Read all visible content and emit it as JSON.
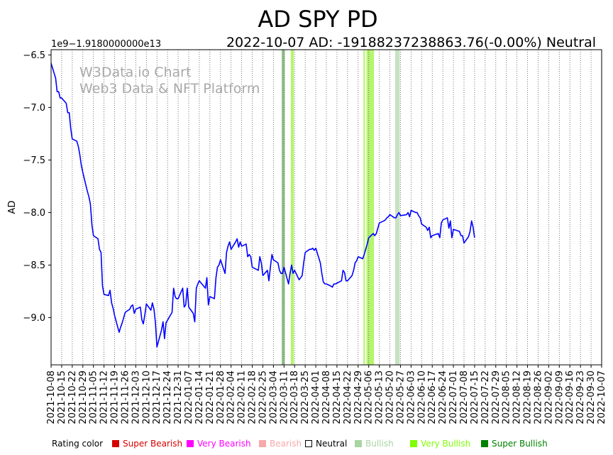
{
  "chart_data": {
    "type": "line",
    "title": "AD SPY PD",
    "subtitle": "2022-10-07 AD: -19188237238863.76(-0.00%) Neutral",
    "ylabel": "AD",
    "xlabel": "",
    "offset_label": "1e9−1.9180000000e13",
    "ylim": [
      -9.45,
      -6.45
    ],
    "yticks": [
      -6.5,
      -7.0,
      -7.5,
      -8.0,
      -8.5,
      -9.0
    ],
    "ytick_labels": [
      "−6.5",
      "−7.0",
      "−7.5",
      "−8.0",
      "−8.5",
      "−9.0"
    ],
    "x_start": "2021-10-08",
    "x_end": "2022-10-07",
    "x_tick_labels": [
      "2021-10-08",
      "2021-10-15",
      "2021-10-22",
      "2021-10-29",
      "2021-11-05",
      "2021-11-12",
      "2021-11-19",
      "2021-11-26",
      "2021-12-03",
      "2021-12-10",
      "2021-12-17",
      "2021-12-24",
      "2021-12-31",
      "2022-01-07",
      "2022-01-14",
      "2022-01-21",
      "2022-01-28",
      "2022-02-04",
      "2022-02-11",
      "2022-02-18",
      "2022-02-25",
      "2022-03-04",
      "2022-03-11",
      "2022-03-18",
      "2022-03-25",
      "2022-04-01",
      "2022-04-08",
      "2022-04-15",
      "2022-04-22",
      "2022-04-29",
      "2022-05-06",
      "2022-05-13",
      "2022-05-20",
      "2022-05-27",
      "2022-06-03",
      "2022-06-10",
      "2022-06-17",
      "2022-06-24",
      "2022-07-01",
      "2022-07-08",
      "2022-07-15",
      "2022-07-22",
      "2022-07-29",
      "2022-08-05",
      "2022-08-12",
      "2022-08-19",
      "2022-08-26",
      "2022-09-02",
      "2022-09-09",
      "2022-09-16",
      "2022-09-23",
      "2022-09-30",
      "2022-10-07"
    ],
    "series": [
      {
        "name": "AD",
        "color": "#0000ff",
        "points": [
          [
            "2021-10-08",
            -6.58
          ],
          [
            "2021-10-11",
            -6.72
          ],
          [
            "2021-10-12",
            -6.85
          ],
          [
            "2021-10-13",
            -6.85
          ],
          [
            "2021-10-14",
            -6.91
          ],
          [
            "2021-10-15",
            -6.91
          ],
          [
            "2021-10-18",
            -6.96
          ],
          [
            "2021-10-19",
            -7.05
          ],
          [
            "2021-10-20",
            -7.05
          ],
          [
            "2021-10-21",
            -7.2
          ],
          [
            "2021-10-22",
            -7.3
          ],
          [
            "2021-10-25",
            -7.32
          ],
          [
            "2021-10-26",
            -7.37
          ],
          [
            "2021-10-27",
            -7.45
          ],
          [
            "2021-10-28",
            -7.55
          ],
          [
            "2021-10-29",
            -7.62
          ],
          [
            "2021-11-01",
            -7.8
          ],
          [
            "2021-11-02",
            -7.85
          ],
          [
            "2021-11-03",
            -7.92
          ],
          [
            "2021-11-04",
            -8.12
          ],
          [
            "2021-11-05",
            -8.22
          ],
          [
            "2021-11-08",
            -8.25
          ],
          [
            "2021-11-09",
            -8.35
          ],
          [
            "2021-11-10",
            -8.38
          ],
          [
            "2021-11-11",
            -8.7
          ],
          [
            "2021-11-12",
            -8.78
          ],
          [
            "2021-11-15",
            -8.79
          ],
          [
            "2021-11-16",
            -8.74
          ],
          [
            "2021-11-17",
            -8.86
          ],
          [
            "2021-11-18",
            -8.91
          ],
          [
            "2021-11-19",
            -8.98
          ],
          [
            "2021-11-22",
            -9.14
          ],
          [
            "2021-11-23",
            -9.09
          ],
          [
            "2021-11-24",
            -9.05
          ],
          [
            "2021-11-26",
            -8.95
          ],
          [
            "2021-11-29",
            -8.92
          ],
          [
            "2021-11-30",
            -8.89
          ],
          [
            "2021-12-01",
            -8.88
          ],
          [
            "2021-12-02",
            -8.96
          ],
          [
            "2021-12-03",
            -8.92
          ],
          [
            "2021-12-06",
            -8.9
          ],
          [
            "2021-12-07",
            -9.02
          ],
          [
            "2021-12-08",
            -9.06
          ],
          [
            "2021-12-09",
            -8.97
          ],
          [
            "2021-12-10",
            -8.87
          ],
          [
            "2021-12-13",
            -8.93
          ],
          [
            "2021-12-14",
            -8.86
          ],
          [
            "2021-12-15",
            -8.92
          ],
          [
            "2021-12-16",
            -9.05
          ],
          [
            "2021-12-17",
            -9.28
          ],
          [
            "2021-12-20",
            -9.12
          ],
          [
            "2021-12-21",
            -9.04
          ],
          [
            "2021-12-22",
            -9.2
          ],
          [
            "2021-12-23",
            -9.05
          ],
          [
            "2021-12-27",
            -8.95
          ],
          [
            "2021-12-28",
            -8.72
          ],
          [
            "2021-12-29",
            -8.8
          ],
          [
            "2021-12-30",
            -8.82
          ],
          [
            "2021-12-31",
            -8.82
          ],
          [
            "2022-01-03",
            -8.72
          ],
          [
            "2022-01-04",
            -8.9
          ],
          [
            "2022-01-05",
            -8.88
          ],
          [
            "2022-01-06",
            -8.72
          ],
          [
            "2022-01-07",
            -8.9
          ],
          [
            "2022-01-10",
            -8.96
          ],
          [
            "2022-01-11",
            -9.04
          ],
          [
            "2022-01-12",
            -8.72
          ],
          [
            "2022-01-13",
            -8.68
          ],
          [
            "2022-01-14",
            -8.65
          ],
          [
            "2022-01-18",
            -8.72
          ],
          [
            "2022-01-19",
            -8.62
          ],
          [
            "2022-01-20",
            -8.88
          ],
          [
            "2022-01-21",
            -8.8
          ],
          [
            "2022-01-24",
            -8.82
          ],
          [
            "2022-01-25",
            -8.62
          ],
          [
            "2022-01-26",
            -8.52
          ],
          [
            "2022-01-27",
            -8.5
          ],
          [
            "2022-01-28",
            -8.45
          ],
          [
            "2022-01-31",
            -8.58
          ],
          [
            "2022-02-01",
            -8.38
          ],
          [
            "2022-02-02",
            -8.32
          ],
          [
            "2022-02-03",
            -8.28
          ],
          [
            "2022-02-04",
            -8.35
          ],
          [
            "2022-02-07",
            -8.28
          ],
          [
            "2022-02-08",
            -8.25
          ],
          [
            "2022-02-09",
            -8.33
          ],
          [
            "2022-02-10",
            -8.28
          ],
          [
            "2022-02-11",
            -8.32
          ],
          [
            "2022-02-14",
            -8.3
          ],
          [
            "2022-02-15",
            -8.42
          ],
          [
            "2022-02-16",
            -8.4
          ],
          [
            "2022-02-17",
            -8.42
          ],
          [
            "2022-02-18",
            -8.52
          ],
          [
            "2022-02-22",
            -8.55
          ],
          [
            "2022-02-23",
            -8.42
          ],
          [
            "2022-02-24",
            -8.48
          ],
          [
            "2022-02-25",
            -8.6
          ],
          [
            "2022-02-28",
            -8.55
          ],
          [
            "2022-03-01",
            -8.65
          ],
          [
            "2022-03-02",
            -8.52
          ],
          [
            "2022-03-03",
            -8.4
          ],
          [
            "2022-03-04",
            -8.45
          ],
          [
            "2022-03-07",
            -8.48
          ],
          [
            "2022-03-08",
            -8.55
          ],
          [
            "2022-03-09",
            -8.58
          ],
          [
            "2022-03-10",
            -8.58
          ],
          [
            "2022-03-11",
            -8.52
          ],
          [
            "2022-03-14",
            -8.68
          ],
          [
            "2022-03-15",
            -8.58
          ],
          [
            "2022-03-16",
            -8.5
          ],
          [
            "2022-03-17",
            -8.58
          ],
          [
            "2022-03-18",
            -8.55
          ],
          [
            "2022-03-21",
            -8.64
          ],
          [
            "2022-03-22",
            -8.62
          ],
          [
            "2022-03-23",
            -8.6
          ],
          [
            "2022-03-24",
            -8.48
          ],
          [
            "2022-03-25",
            -8.38
          ],
          [
            "2022-03-28",
            -8.35
          ],
          [
            "2022-03-29",
            -8.35
          ],
          [
            "2022-03-30",
            -8.34
          ],
          [
            "2022-03-31",
            -8.36
          ],
          [
            "2022-04-01",
            -8.34
          ],
          [
            "2022-04-04",
            -8.48
          ],
          [
            "2022-04-05",
            -8.58
          ],
          [
            "2022-04-06",
            -8.66
          ],
          [
            "2022-04-07",
            -8.68
          ],
          [
            "2022-04-08",
            -8.68
          ],
          [
            "2022-04-11",
            -8.7
          ],
          [
            "2022-04-12",
            -8.71
          ],
          [
            "2022-04-13",
            -8.68
          ],
          [
            "2022-04-14",
            -8.68
          ],
          [
            "2022-04-18",
            -8.65
          ],
          [
            "2022-04-19",
            -8.55
          ],
          [
            "2022-04-20",
            -8.57
          ],
          [
            "2022-04-21",
            -8.65
          ],
          [
            "2022-04-22",
            -8.65
          ],
          [
            "2022-04-25",
            -8.6
          ],
          [
            "2022-04-26",
            -8.55
          ],
          [
            "2022-04-27",
            -8.48
          ],
          [
            "2022-04-28",
            -8.46
          ],
          [
            "2022-04-29",
            -8.42
          ],
          [
            "2022-05-02",
            -8.44
          ],
          [
            "2022-05-03",
            -8.4
          ],
          [
            "2022-05-04",
            -8.35
          ],
          [
            "2022-05-05",
            -8.3
          ],
          [
            "2022-05-06",
            -8.24
          ],
          [
            "2022-05-09",
            -8.2
          ],
          [
            "2022-05-10",
            -8.22
          ],
          [
            "2022-05-11",
            -8.2
          ],
          [
            "2022-05-12",
            -8.15
          ],
          [
            "2022-05-13",
            -8.1
          ],
          [
            "2022-05-16",
            -8.08
          ],
          [
            "2022-05-17",
            -8.07
          ],
          [
            "2022-05-18",
            -8.05
          ],
          [
            "2022-05-19",
            -8.04
          ],
          [
            "2022-05-20",
            -8.02
          ],
          [
            "2022-05-23",
            -8.05
          ],
          [
            "2022-05-24",
            -8.05
          ],
          [
            "2022-05-25",
            -8.02
          ],
          [
            "2022-05-26",
            -8.0
          ],
          [
            "2022-05-27",
            -8.03
          ],
          [
            "2022-05-31",
            -8.02
          ],
          [
            "2022-06-01",
            -8.0
          ],
          [
            "2022-06-02",
            -8.04
          ],
          [
            "2022-06-03",
            -7.98
          ],
          [
            "2022-06-06",
            -8.0
          ],
          [
            "2022-06-07",
            -8.0
          ],
          [
            "2022-06-08",
            -8.03
          ],
          [
            "2022-06-09",
            -8.05
          ],
          [
            "2022-06-10",
            -8.11
          ],
          [
            "2022-06-13",
            -8.14
          ],
          [
            "2022-06-14",
            -8.17
          ],
          [
            "2022-06-15",
            -8.14
          ],
          [
            "2022-06-16",
            -8.24
          ],
          [
            "2022-06-17",
            -8.22
          ],
          [
            "2022-06-21",
            -8.2
          ],
          [
            "2022-06-22",
            -8.24
          ],
          [
            "2022-06-23",
            -8.1
          ],
          [
            "2022-06-24",
            -8.07
          ],
          [
            "2022-06-27",
            -8.05
          ],
          [
            "2022-06-28",
            -8.15
          ],
          [
            "2022-06-29",
            -8.08
          ],
          [
            "2022-06-30",
            -8.24
          ],
          [
            "2022-07-01",
            -8.16
          ],
          [
            "2022-07-05",
            -8.18
          ],
          [
            "2022-07-06",
            -8.22
          ],
          [
            "2022-07-07",
            -8.22
          ],
          [
            "2022-07-08",
            -8.29
          ],
          [
            "2022-07-11",
            -8.23
          ],
          [
            "2022-07-12",
            -8.18
          ],
          [
            "2022-07-13",
            -8.08
          ],
          [
            "2022-07-14",
            -8.14
          ],
          [
            "2022-07-15",
            -8.24
          ]
        ]
      }
    ],
    "shaded_regions": [
      {
        "start": "2022-03-10",
        "end": "2022-03-11",
        "rating": "Super Bullish",
        "color": "#8fbf87"
      },
      {
        "start": "2022-03-16",
        "end": "2022-03-17",
        "rating": "Very Bullish",
        "color": "#b5f56e"
      },
      {
        "start": "2022-05-03",
        "end": "2022-05-03",
        "rating": "Very Bullish",
        "color": "#b5f56e"
      },
      {
        "start": "2022-05-05",
        "end": "2022-05-09",
        "rating": "Very Bullish",
        "color": "#b5f56e"
      },
      {
        "start": "2022-05-24",
        "end": "2022-05-26",
        "rating": "Bullish",
        "color": "#c7e2c2"
      }
    ],
    "watermark": [
      "W3Data.io Chart",
      "Web3 Data & NFT Platform"
    ],
    "legend": {
      "title": "Rating color",
      "placement": "bottom",
      "items": [
        {
          "label": "Super Bearish",
          "color": "#d40000"
        },
        {
          "label": "Very Bearish",
          "color": "#ff00ff"
        },
        {
          "label": "Bearish",
          "color": "#f7a9a9"
        },
        {
          "label": "Neutral",
          "color": "#ffffff"
        },
        {
          "label": "Bullish",
          "color": "#a8d5a2"
        },
        {
          "label": "Very Bullish",
          "color": "#7fff00"
        },
        {
          "label": "Super Bullish",
          "color": "#008000"
        }
      ]
    }
  }
}
